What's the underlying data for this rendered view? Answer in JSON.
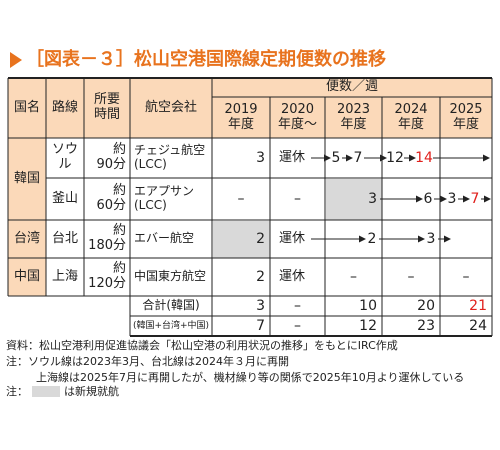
{
  "title": "［図表－３］松山空港国際線定期便数の推移",
  "table": {
    "group_header": "便数／週",
    "headers": [
      "国名",
      "路線",
      "所要\n時間",
      "航空会社",
      "2019\n年度",
      "2020\n年度～",
      "2023\n年度",
      "2024\n年度",
      "2025\n年度"
    ],
    "groups": [
      {
        "name": "韓国",
        "routes": [
          {
            "route": "ソウル",
            "time": "約\n90分",
            "airline": "チェジュ航空\n(LCC)",
            "y2019": 3,
            "y2020": "運休",
            "y2023": [
              5,
              7
            ],
            "y2024": [
              12,
              14
            ]
          },
          {
            "route": "釜山",
            "time": "約\n60分",
            "airline": "エアプサン\n(LCC)",
            "y2019": "–",
            "y2020": "–",
            "y2023": 3,
            "y2024": 6,
            "y2025": [
              3,
              7
            ]
          }
        ]
      },
      {
        "name": "台湾",
        "routes": [
          {
            "route": "台北",
            "time": "約\n180分",
            "airline": "エバー航空",
            "y2019": 2,
            "y2020": "運休",
            "y2023": 2,
            "y2024": 3
          }
        ]
      },
      {
        "name": "中国",
        "routes": [
          {
            "route": "上海",
            "time": "約\n120分",
            "airline": "中国東方航空",
            "y2019": 2,
            "y2020": "運休",
            "y2023": "–",
            "y2024": "–",
            "y2025": "–"
          }
        ]
      }
    ],
    "totals": [
      {
        "label": "合計(韓国)",
        "values": [
          3,
          "–",
          10,
          20,
          21
        ]
      },
      {
        "label": "(韓国+台湾+中国)",
        "values": [
          7,
          "–",
          12,
          23,
          24
        ]
      }
    ]
  },
  "notes": [
    "資料：松山空港利用促進協議会「松山空港の利用状況の推移」をもとにIRC作成",
    "注：ソウル線は2023年3月、台北線は2024年３月に再開",
    "上海線は2025年7月に再開したが、機材繰り等の関係で2025年10月より運休している"
  ],
  "legend": {
    "prefix": "注：",
    "text": "は新規就航"
  }
}
